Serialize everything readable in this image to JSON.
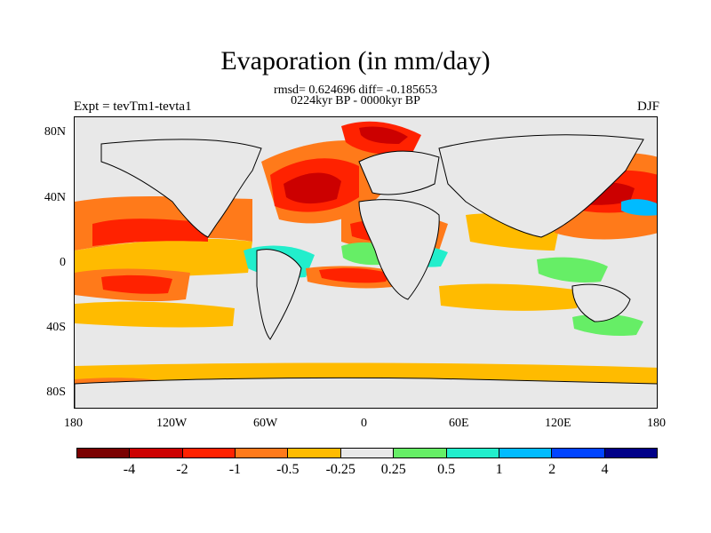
{
  "title": "Evaporation (in mm/day)",
  "subtitle_stats": "rmsd= 0.624696 diff= -0.185653",
  "subtitle_period": "0224kyr BP - 0000kyr BP",
  "left_header": "Expt = tevTm1-tevta1",
  "right_header": "DJF",
  "x_ticks": [
    "180",
    "120W",
    "60W",
    "0",
    "60E",
    "120E",
    "180"
  ],
  "y_ticks": [
    "80N",
    "40N",
    "0",
    "40S",
    "80S"
  ],
  "colorbar": {
    "colors": [
      "#7a0000",
      "#cc0000",
      "#ff2200",
      "#ff7a1a",
      "#ffbb00",
      "#e8e8e8",
      "#66ee66",
      "#22eecc",
      "#00bbff",
      "#0044ff",
      "#000088"
    ],
    "labels": [
      "-4",
      "-2",
      "-1",
      "-0.5",
      "-0.25",
      "0.25",
      "0.5",
      "1",
      "2",
      "4"
    ]
  }
}
